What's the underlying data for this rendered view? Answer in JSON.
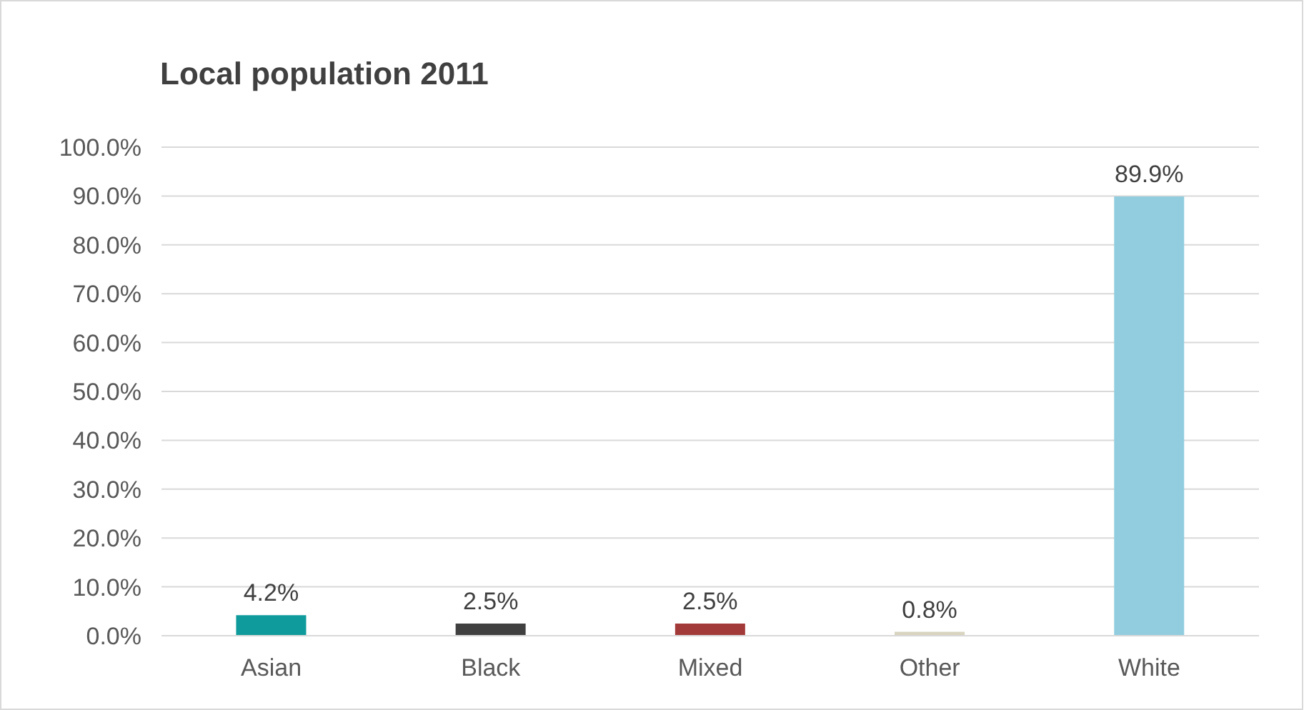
{
  "chart_data": {
    "type": "bar",
    "title": "Local population 2011",
    "categories": [
      "Asian",
      "Black",
      "Mixed",
      "Other",
      "White"
    ],
    "values": [
      4.2,
      2.5,
      2.5,
      0.8,
      89.9
    ],
    "colors": [
      "#0f9b9b",
      "#404040",
      "#a33a3a",
      "#d8d4bf",
      "#92cddf"
    ],
    "value_labels": [
      "4.2%",
      "2.5%",
      "2.5%",
      "0.8%",
      "89.9%"
    ],
    "ylim": [
      0,
      100
    ],
    "yticks": [
      {
        "value": 0,
        "label": "0.0%"
      },
      {
        "value": 10,
        "label": "10.0%"
      },
      {
        "value": 20,
        "label": "20.0%"
      },
      {
        "value": 30,
        "label": "30.0%"
      },
      {
        "value": 40,
        "label": "40.0%"
      },
      {
        "value": 50,
        "label": "50.0%"
      },
      {
        "value": 60,
        "label": "60.0%"
      },
      {
        "value": 70,
        "label": "70.0%"
      },
      {
        "value": 80,
        "label": "80.0%"
      },
      {
        "value": 90,
        "label": "90.0%"
      },
      {
        "value": 100,
        "label": "100.0%"
      }
    ],
    "grid": "y"
  }
}
